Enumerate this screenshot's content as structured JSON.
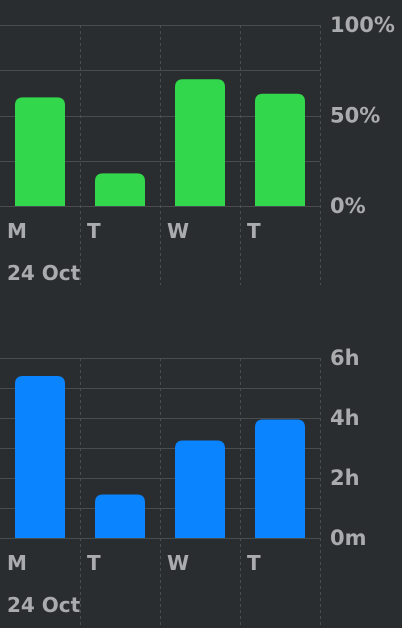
{
  "chart_data": [
    {
      "type": "bar",
      "categories": [
        "M",
        "T",
        "W",
        "T"
      ],
      "values": [
        60,
        18,
        70,
        62
      ],
      "ylim": [
        0,
        100
      ],
      "yticks": [
        0,
        50,
        100
      ],
      "ytick_labels": [
        "0%",
        "50%",
        "100%"
      ],
      "date_label": "24 Oct",
      "grid": true,
      "color": "#32d74b"
    },
    {
      "type": "bar",
      "categories": [
        "M",
        "T",
        "W",
        "T"
      ],
      "values": [
        5.4,
        1.45,
        3.25,
        3.95
      ],
      "ylim": [
        0,
        6
      ],
      "yticks": [
        0,
        2,
        4,
        6
      ],
      "ytick_labels": [
        "0m",
        "2h",
        "4h",
        "6h"
      ],
      "date_label": "24 Oct",
      "grid": true,
      "color": "#0a84ff"
    }
  ],
  "colors": {
    "background": "#2a2d30",
    "grid": "#4a4d50",
    "text": "#a9abad"
  }
}
